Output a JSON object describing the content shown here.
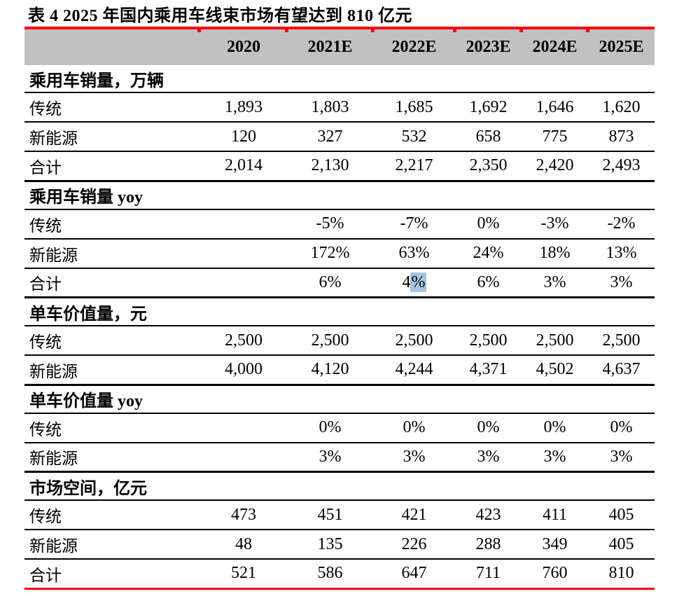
{
  "page": {
    "title": "表 4 2025 年国内乘用车线束市场有望达到 810 亿元"
  },
  "colors": {
    "accent_red": "#fe0000",
    "header_bg": "#c1c1c1",
    "selection_highlight": "#a6c4de"
  },
  "table": {
    "column_headers": [
      "2020",
      "2021E",
      "2022E",
      "2023E",
      "2024E",
      "2025E"
    ],
    "sections": [
      {
        "header": "乘用车销量，万辆",
        "rows": [
          {
            "label": "传统",
            "values": [
              "1,893",
              "1,803",
              "1,685",
              "1,692",
              "1,646",
              "1,620"
            ]
          },
          {
            "label": "新能源",
            "values": [
              "120",
              "327",
              "532",
              "658",
              "775",
              "873"
            ]
          },
          {
            "label": "合计",
            "values": [
              "2,014",
              "2,130",
              "2,217",
              "2,350",
              "2,420",
              "2,493"
            ]
          }
        ]
      },
      {
        "header": "乘用车销量 yoy",
        "rows": [
          {
            "label": "传统",
            "values": [
              "",
              "-5%",
              "-7%",
              "0%",
              "-3%",
              "-2%"
            ]
          },
          {
            "label": "新能源",
            "values": [
              "",
              "172%",
              "63%",
              "24%",
              "18%",
              "13%"
            ]
          },
          {
            "label": "合计",
            "values": [
              "",
              "6%",
              "4%",
              "6%",
              "3%",
              "3%"
            ],
            "highlight": {
              "value_index": 2,
              "suffix_len": 1
            }
          }
        ]
      },
      {
        "header": "单车价值量，元",
        "rows": [
          {
            "label": "传统",
            "values": [
              "2,500",
              "2,500",
              "2,500",
              "2,500",
              "2,500",
              "2,500"
            ]
          },
          {
            "label": "新能源",
            "values": [
              "4,000",
              "4,120",
              "4,244",
              "4,371",
              "4,502",
              "4,637"
            ]
          }
        ]
      },
      {
        "header": "单车价值量 yoy",
        "rows": [
          {
            "label": "传统",
            "values": [
              "",
              "0%",
              "0%",
              "0%",
              "0%",
              "0%"
            ]
          },
          {
            "label": "新能源",
            "values": [
              "",
              "3%",
              "3%",
              "3%",
              "3%",
              "3%"
            ]
          }
        ]
      },
      {
        "header": "市场空间，亿元",
        "rows": [
          {
            "label": "传统",
            "values": [
              "473",
              "451",
              "421",
              "423",
              "411",
              "405"
            ]
          },
          {
            "label": "新能源",
            "values": [
              "48",
              "135",
              "226",
              "288",
              "349",
              "405"
            ]
          },
          {
            "label": "合计",
            "values": [
              "521",
              "586",
              "647",
              "711",
              "760",
              "810"
            ]
          }
        ]
      }
    ]
  }
}
